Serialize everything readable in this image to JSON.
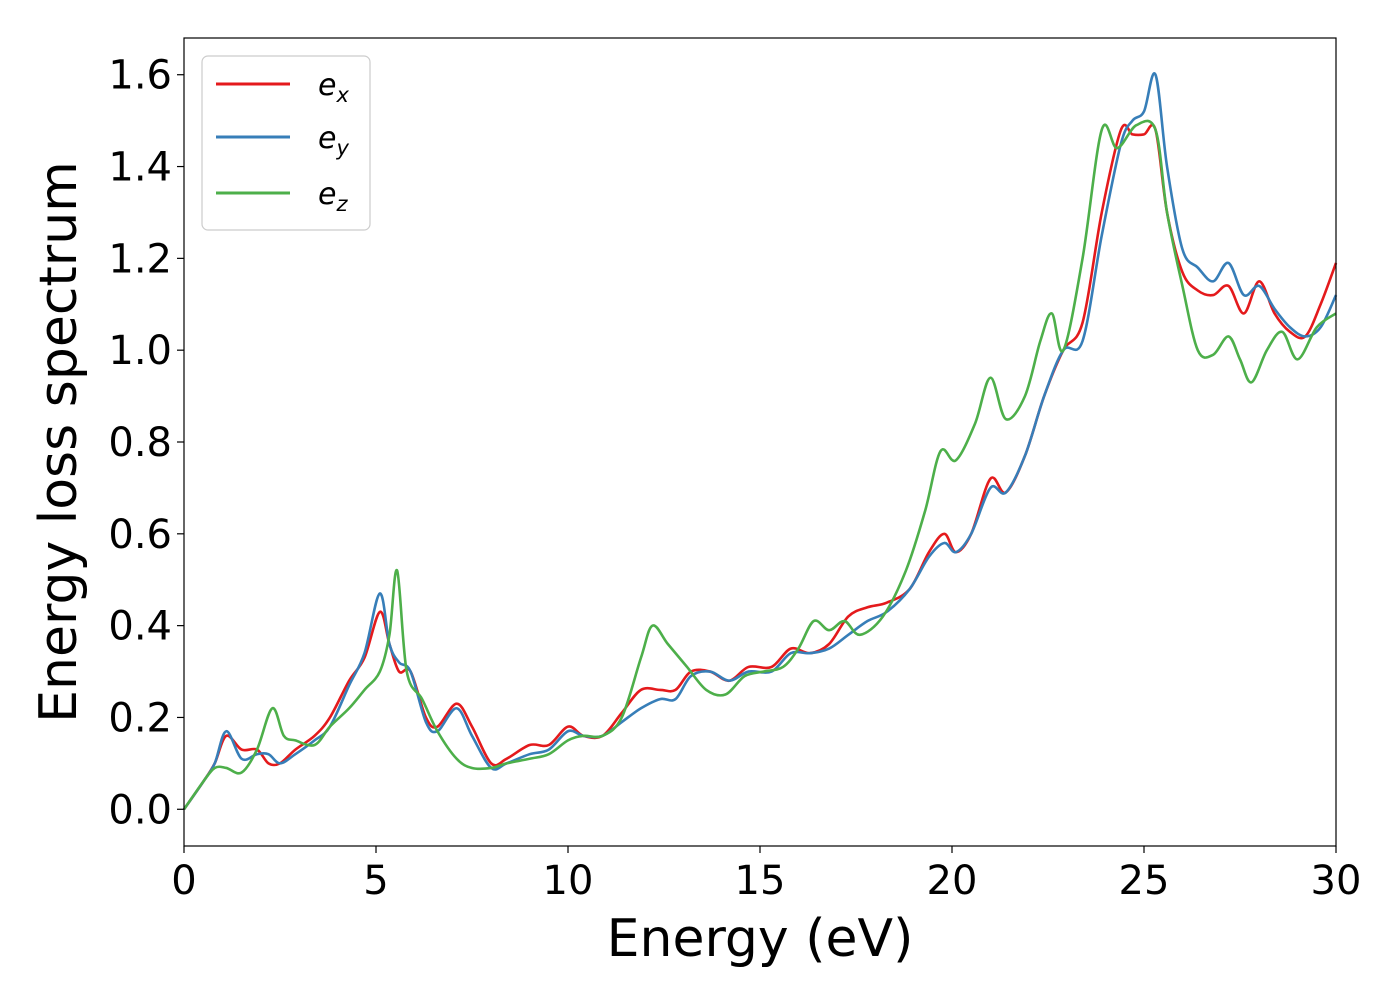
{
  "chart_data": {
    "type": "line",
    "xlabel": "Energy (eV)",
    "ylabel": "Energy loss spectrum",
    "xlim": [
      0,
      30
    ],
    "ylim": [
      -0.08,
      1.68
    ],
    "xticks": [
      0,
      5,
      10,
      15,
      20,
      25,
      30
    ],
    "xtick_labels": [
      "0",
      "5",
      "10",
      "15",
      "20",
      "25",
      "30"
    ],
    "yticks": [
      0.0,
      0.2,
      0.4,
      0.6,
      0.8,
      1.0,
      1.2,
      1.4,
      1.6
    ],
    "ytick_labels": [
      "0.0",
      "0.2",
      "0.4",
      "0.6",
      "0.8",
      "1.0",
      "1.2",
      "1.4",
      "1.6"
    ],
    "grid": false,
    "legend_position": "top-left",
    "series": [
      {
        "label_base": "e",
        "label_sub": "x",
        "color": "#e41a1c",
        "x": [
          0,
          0.5,
          0.8,
          1.1,
          1.5,
          1.9,
          2.2,
          2.5,
          2.9,
          3.4,
          3.8,
          4.3,
          4.7,
          5.1,
          5.35,
          5.6,
          5.9,
          6.3,
          6.6,
          7.1,
          7.5,
          8.0,
          8.4,
          9.0,
          9.5,
          10.0,
          10.4,
          10.9,
          11.4,
          11.9,
          12.4,
          12.8,
          13.2,
          13.7,
          14.2,
          14.7,
          15.3,
          15.8,
          16.3,
          16.8,
          17.3,
          17.8,
          18.3,
          18.9,
          19.4,
          19.8,
          20.1,
          20.5,
          21.0,
          21.4,
          21.9,
          22.4,
          22.9,
          23.4,
          23.9,
          24.4,
          24.7,
          25.0,
          25.3,
          25.6,
          26.0,
          26.4,
          26.8,
          27.2,
          27.6,
          28.0,
          28.4,
          28.8,
          29.2,
          29.6,
          30.0
        ],
        "y": [
          0.0,
          0.06,
          0.1,
          0.16,
          0.13,
          0.13,
          0.1,
          0.1,
          0.13,
          0.16,
          0.2,
          0.28,
          0.33,
          0.43,
          0.36,
          0.3,
          0.3,
          0.2,
          0.18,
          0.23,
          0.18,
          0.1,
          0.11,
          0.14,
          0.14,
          0.18,
          0.16,
          0.16,
          0.21,
          0.26,
          0.26,
          0.26,
          0.3,
          0.3,
          0.28,
          0.31,
          0.31,
          0.35,
          0.34,
          0.36,
          0.42,
          0.44,
          0.45,
          0.48,
          0.56,
          0.6,
          0.56,
          0.6,
          0.72,
          0.69,
          0.77,
          0.9,
          1.0,
          1.06,
          1.3,
          1.48,
          1.47,
          1.47,
          1.48,
          1.3,
          1.17,
          1.13,
          1.12,
          1.14,
          1.08,
          1.15,
          1.08,
          1.04,
          1.03,
          1.1,
          1.19
        ]
      },
      {
        "label_base": "e",
        "label_sub": "y",
        "color": "#377eb8",
        "x": [
          0,
          0.5,
          0.8,
          1.1,
          1.5,
          1.9,
          2.2,
          2.5,
          2.9,
          3.4,
          3.8,
          4.3,
          4.7,
          5.1,
          5.35,
          5.6,
          5.9,
          6.3,
          6.6,
          7.1,
          7.5,
          8.0,
          8.4,
          9.0,
          9.5,
          10.0,
          10.4,
          10.9,
          11.4,
          11.9,
          12.4,
          12.8,
          13.2,
          13.7,
          14.2,
          14.7,
          15.3,
          15.8,
          16.3,
          16.8,
          17.3,
          17.8,
          18.3,
          18.9,
          19.4,
          19.8,
          20.1,
          20.5,
          21.0,
          21.4,
          21.9,
          22.4,
          22.9,
          23.4,
          23.9,
          24.4,
          24.7,
          25.0,
          25.3,
          25.6,
          26.0,
          26.4,
          26.8,
          27.2,
          27.6,
          28.0,
          28.4,
          28.8,
          29.2,
          29.6,
          30.0
        ],
        "y": [
          0.0,
          0.06,
          0.1,
          0.17,
          0.11,
          0.12,
          0.12,
          0.1,
          0.12,
          0.15,
          0.18,
          0.27,
          0.34,
          0.47,
          0.36,
          0.32,
          0.3,
          0.19,
          0.17,
          0.22,
          0.16,
          0.09,
          0.1,
          0.12,
          0.13,
          0.17,
          0.16,
          0.16,
          0.19,
          0.22,
          0.24,
          0.24,
          0.29,
          0.3,
          0.28,
          0.3,
          0.3,
          0.34,
          0.34,
          0.35,
          0.38,
          0.41,
          0.43,
          0.48,
          0.55,
          0.58,
          0.56,
          0.6,
          0.7,
          0.69,
          0.77,
          0.9,
          1.0,
          1.02,
          1.25,
          1.45,
          1.5,
          1.52,
          1.6,
          1.4,
          1.22,
          1.18,
          1.15,
          1.19,
          1.12,
          1.14,
          1.09,
          1.05,
          1.03,
          1.05,
          1.12
        ]
      },
      {
        "label_base": "e",
        "label_sub": "z",
        "color": "#4daf4a",
        "x": [
          0,
          0.5,
          0.8,
          1.1,
          1.5,
          1.9,
          2.3,
          2.6,
          2.9,
          3.4,
          3.8,
          4.3,
          4.7,
          5.1,
          5.35,
          5.55,
          5.8,
          6.2,
          6.6,
          7.1,
          7.5,
          8.0,
          8.4,
          9.0,
          9.5,
          10.0,
          10.4,
          10.9,
          11.4,
          11.9,
          12.2,
          12.6,
          13.1,
          13.6,
          14.1,
          14.6,
          15.1,
          15.6,
          16.0,
          16.4,
          16.8,
          17.2,
          17.6,
          18.2,
          18.8,
          19.3,
          19.7,
          20.1,
          20.6,
          21.0,
          21.4,
          21.9,
          22.3,
          22.6,
          22.9,
          23.4,
          23.9,
          24.3,
          24.8,
          25.3,
          25.6,
          26.0,
          26.4,
          26.8,
          27.2,
          27.5,
          27.8,
          28.2,
          28.6,
          29.0,
          29.5,
          30.0
        ],
        "y": [
          0.0,
          0.06,
          0.09,
          0.09,
          0.08,
          0.13,
          0.22,
          0.16,
          0.15,
          0.14,
          0.18,
          0.22,
          0.26,
          0.3,
          0.38,
          0.52,
          0.3,
          0.24,
          0.17,
          0.11,
          0.09,
          0.09,
          0.1,
          0.11,
          0.12,
          0.15,
          0.16,
          0.16,
          0.2,
          0.33,
          0.4,
          0.36,
          0.31,
          0.26,
          0.25,
          0.29,
          0.3,
          0.31,
          0.35,
          0.41,
          0.39,
          0.41,
          0.38,
          0.42,
          0.52,
          0.65,
          0.78,
          0.76,
          0.84,
          0.94,
          0.85,
          0.9,
          1.02,
          1.08,
          1.0,
          1.2,
          1.48,
          1.44,
          1.49,
          1.48,
          1.3,
          1.14,
          1.0,
          0.99,
          1.03,
          0.98,
          0.93,
          1.0,
          1.04,
          0.98,
          1.05,
          1.08
        ]
      }
    ]
  }
}
